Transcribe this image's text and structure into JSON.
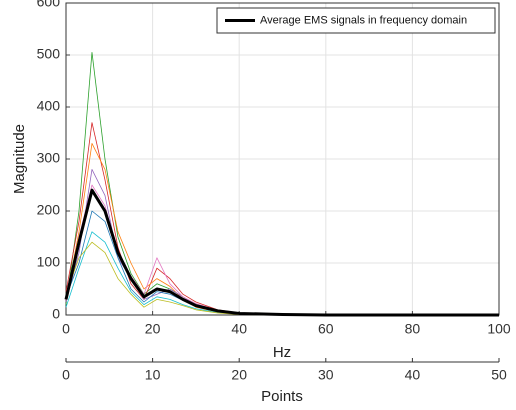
{
  "chart_data": {
    "type": "line",
    "xlabel": "Hz",
    "ylabel": "Magnitude",
    "x": [
      0,
      3,
      6,
      9,
      12,
      15,
      18,
      21,
      24,
      27,
      30,
      35,
      40,
      50,
      60,
      70,
      80,
      90,
      100
    ],
    "xlim": [
      0,
      100
    ],
    "xticks": [
      0,
      20,
      40,
      60,
      80,
      100
    ],
    "ylim": [
      0,
      600
    ],
    "yticks": [
      0,
      100,
      200,
      300,
      400,
      500,
      600
    ],
    "x2label": "Points",
    "x2lim": [
      0,
      50
    ],
    "x2ticks": [
      0,
      10,
      20,
      30,
      40,
      50
    ],
    "grid": true,
    "legend_position": "top-right",
    "series": [
      {
        "color": "#2ca02c",
        "values": [
          20,
          200,
          505,
          300,
          150,
          80,
          40,
          60,
          50,
          35,
          20,
          8,
          3,
          1,
          0,
          0,
          0,
          0,
          0
        ]
      },
      {
        "color": "#d62728",
        "values": [
          45,
          180,
          370,
          260,
          130,
          60,
          30,
          90,
          70,
          40,
          25,
          10,
          4,
          1,
          0,
          0,
          0,
          0,
          0
        ]
      },
      {
        "color": "#ff7f0e",
        "values": [
          30,
          160,
          330,
          280,
          160,
          100,
          50,
          70,
          55,
          30,
          15,
          6,
          2,
          1,
          0,
          0,
          0,
          0,
          0
        ]
      },
      {
        "color": "#9467bd",
        "values": [
          25,
          120,
          280,
          230,
          110,
          70,
          30,
          40,
          50,
          35,
          20,
          9,
          3,
          1,
          0,
          0,
          0,
          0,
          0
        ]
      },
      {
        "color": "#1f77b4",
        "values": [
          35,
          100,
          200,
          180,
          110,
          50,
          25,
          45,
          40,
          28,
          18,
          7,
          2,
          0,
          0,
          0,
          0,
          0,
          0
        ]
      },
      {
        "color": "#17becf",
        "values": [
          15,
          90,
          160,
          140,
          90,
          45,
          20,
          35,
          30,
          20,
          12,
          5,
          2,
          0,
          0,
          0,
          0,
          0,
          0
        ]
      },
      {
        "color": "#bcbd22",
        "values": [
          40,
          110,
          140,
          120,
          70,
          40,
          15,
          30,
          25,
          18,
          10,
          4,
          1,
          0,
          0,
          0,
          0,
          0,
          0
        ]
      },
      {
        "color": "#e377c2",
        "values": [
          28,
          150,
          250,
          210,
          120,
          75,
          40,
          110,
          60,
          35,
          22,
          9,
          3,
          1,
          0,
          0,
          0,
          0,
          0
        ]
      },
      {
        "name": "Average EMS signals in frequency domain",
        "color": "#000000",
        "width": 3,
        "values": [
          30,
          140,
          240,
          200,
          120,
          70,
          35,
          50,
          45,
          30,
          18,
          8,
          3,
          1,
          0,
          0,
          0,
          0,
          0
        ]
      }
    ]
  }
}
